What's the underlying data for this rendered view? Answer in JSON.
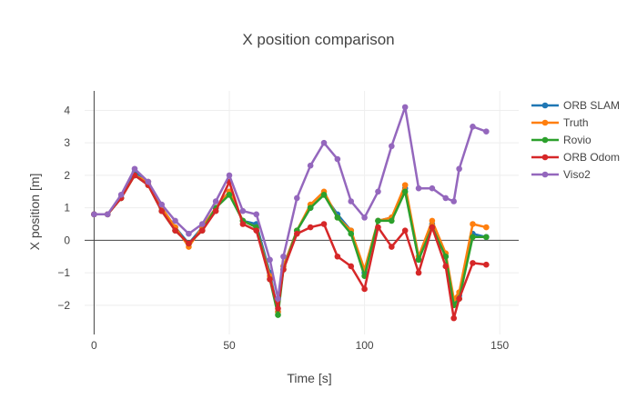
{
  "chart_data": {
    "type": "line",
    "title": "X position comparison",
    "xlabel": "Time [s]",
    "ylabel": "X position [m]",
    "xlim": [
      -3.5,
      157
    ],
    "ylim": [
      -2.9,
      4.6
    ],
    "xticks": [
      0,
      50,
      100,
      150
    ],
    "yticks": [
      -2,
      -1,
      0,
      1,
      2,
      3,
      4
    ],
    "grid": true,
    "legend_position": "top-right",
    "series": [
      {
        "name": "ORB SLAM",
        "color": "#1f77b4",
        "x": [
          0,
          5,
          10,
          15,
          20,
          25,
          30,
          35,
          40,
          45,
          50,
          55,
          60,
          65,
          68,
          70,
          75,
          80,
          85,
          90,
          95,
          100,
          105,
          110,
          115,
          120,
          125,
          130,
          133,
          135,
          140,
          145
        ],
        "y": [
          0.8,
          0.8,
          1.3,
          2.1,
          1.8,
          1.0,
          0.4,
          -0.1,
          0.4,
          1.0,
          1.5,
          0.6,
          0.5,
          -1.0,
          -2.2,
          -0.8,
          0.3,
          1.0,
          1.4,
          0.8,
          0.3,
          -1.0,
          0.6,
          0.7,
          1.6,
          -0.6,
          0.5,
          -0.5,
          -1.9,
          -1.7,
          0.2,
          0.1
        ]
      },
      {
        "name": "Truth",
        "color": "#ff7f0e",
        "x": [
          0,
          5,
          10,
          15,
          20,
          25,
          30,
          35,
          40,
          45,
          50,
          55,
          60,
          65,
          68,
          70,
          75,
          80,
          85,
          90,
          95,
          100,
          105,
          110,
          115,
          120,
          125,
          130,
          133,
          135,
          140,
          145
        ],
        "y": [
          0.8,
          0.8,
          1.3,
          2.0,
          1.8,
          1.0,
          0.4,
          -0.2,
          0.4,
          1.0,
          1.5,
          0.6,
          0.4,
          -1.1,
          -2.2,
          -0.8,
          0.3,
          1.1,
          1.5,
          0.7,
          0.3,
          -0.9,
          0.6,
          0.7,
          1.7,
          -0.5,
          0.6,
          -0.4,
          -1.8,
          -1.6,
          0.5,
          0.4
        ]
      },
      {
        "name": "Rovio",
        "color": "#2ca02c",
        "x": [
          0,
          5,
          10,
          15,
          20,
          25,
          30,
          35,
          40,
          45,
          50,
          55,
          60,
          65,
          68,
          70,
          75,
          80,
          85,
          90,
          95,
          100,
          105,
          110,
          115,
          120,
          125,
          130,
          133,
          135,
          140,
          145
        ],
        "y": [
          0.8,
          0.8,
          1.3,
          2.0,
          1.7,
          0.9,
          0.3,
          -0.1,
          0.3,
          1.0,
          1.4,
          0.6,
          0.4,
          -1.2,
          -2.3,
          -0.9,
          0.3,
          1.0,
          1.4,
          0.7,
          0.2,
          -1.1,
          0.6,
          0.6,
          1.5,
          -0.6,
          0.4,
          -0.5,
          -2.0,
          -1.8,
          0.1,
          0.1
        ]
      },
      {
        "name": "ORB Odom",
        "color": "#d62728",
        "x": [
          0,
          5,
          10,
          15,
          20,
          25,
          30,
          35,
          40,
          45,
          50,
          55,
          60,
          65,
          68,
          70,
          75,
          80,
          85,
          90,
          95,
          100,
          105,
          110,
          115,
          120,
          125,
          130,
          133,
          135,
          140,
          145
        ],
        "y": [
          0.8,
          0.8,
          1.3,
          2.0,
          1.7,
          0.9,
          0.3,
          -0.1,
          0.3,
          0.9,
          1.8,
          0.5,
          0.3,
          -1.2,
          -2.1,
          -0.9,
          0.2,
          0.4,
          0.5,
          -0.5,
          -0.8,
          -1.5,
          0.4,
          -0.2,
          0.3,
          -1.0,
          0.4,
          -0.8,
          -2.4,
          -1.8,
          -0.7,
          -0.75
        ]
      },
      {
        "name": "Viso2",
        "color": "#9467bd",
        "x": [
          0,
          5,
          10,
          15,
          20,
          25,
          30,
          35,
          40,
          45,
          50,
          55,
          60,
          65,
          68,
          70,
          75,
          80,
          85,
          90,
          95,
          100,
          105,
          110,
          115,
          120,
          125,
          130,
          133,
          135,
          140,
          145
        ],
        "y": [
          0.8,
          0.8,
          1.4,
          2.2,
          1.8,
          1.1,
          0.6,
          0.2,
          0.5,
          1.2,
          2.0,
          0.9,
          0.8,
          -0.6,
          -1.8,
          -0.5,
          1.3,
          2.3,
          3.0,
          2.5,
          1.2,
          0.7,
          1.5,
          2.9,
          4.1,
          1.6,
          1.6,
          1.3,
          1.2,
          2.2,
          3.5,
          3.35
        ]
      }
    ]
  }
}
